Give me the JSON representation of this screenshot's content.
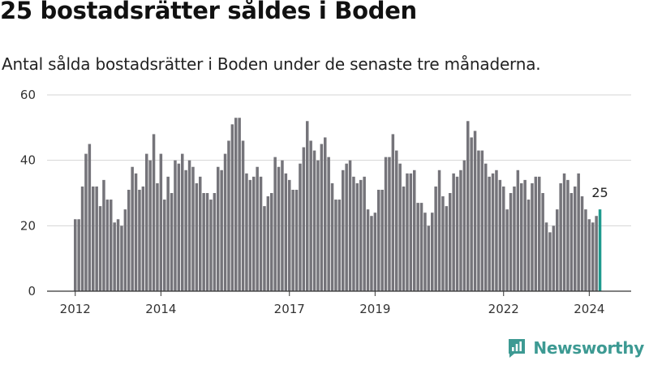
{
  "header": {
    "title": "25 bostadsrätter såldes i Boden",
    "subtitle": "Antal sålda bostadsrätter i Boden under de senaste tre månaderna."
  },
  "brand": {
    "name": "Newsworthy"
  },
  "colors": {
    "bar": "#75747a",
    "highlight": "#1e9a8e",
    "grid": "#d4d4d4",
    "axis": "#333333",
    "brand": "#3d9a93"
  },
  "chart_data": {
    "type": "bar",
    "title": "25 bostadsrätter såldes i Boden",
    "subtitle": "Antal sålda bostadsrätter i Boden under de senaste tre månaderna.",
    "xlabel": "",
    "ylabel": "",
    "ylim": [
      0,
      60
    ],
    "yticks": [
      0,
      20,
      40,
      60
    ],
    "start_year": 2012,
    "start_month": 1,
    "interval": "monthly rolling 3-month sum",
    "xticks": [
      {
        "label": "2012",
        "index": 0
      },
      {
        "label": "2014",
        "index": 24
      },
      {
        "label": "2017",
        "index": 60
      },
      {
        "label": "2019",
        "index": 84
      },
      {
        "label": "2022",
        "index": 120
      },
      {
        "label": "2024",
        "index": 144
      }
    ],
    "highlight_index": 147,
    "highlight_label": "25",
    "values": [
      22,
      22,
      32,
      42,
      45,
      32,
      32,
      26,
      34,
      28,
      28,
      21,
      22,
      20,
      25,
      31,
      38,
      36,
      31,
      32,
      42,
      40,
      48,
      33,
      42,
      28,
      35,
      30,
      40,
      39,
      42,
      37,
      40,
      38,
      33,
      35,
      30,
      30,
      28,
      30,
      38,
      37,
      42,
      46,
      51,
      53,
      53,
      46,
      36,
      34,
      35,
      38,
      35,
      26,
      29,
      30,
      41,
      38,
      40,
      36,
      34,
      31,
      31,
      39,
      44,
      52,
      46,
      43,
      40,
      45,
      47,
      41,
      33,
      28,
      28,
      37,
      39,
      40,
      35,
      33,
      34,
      35,
      25,
      23,
      24,
      31,
      31,
      41,
      41,
      48,
      43,
      39,
      32,
      36,
      36,
      37,
      27,
      27,
      24,
      20,
      24,
      32,
      37,
      29,
      26,
      30,
      36,
      35,
      37,
      40,
      52,
      47,
      49,
      43,
      43,
      39,
      35,
      36,
      37,
      34,
      32,
      25,
      30,
      32,
      37,
      33,
      34,
      28,
      33,
      35,
      35,
      30,
      21,
      18,
      20,
      25,
      33,
      36,
      34,
      30,
      32,
      36,
      29,
      25,
      22,
      21,
      23,
      25
    ]
  }
}
